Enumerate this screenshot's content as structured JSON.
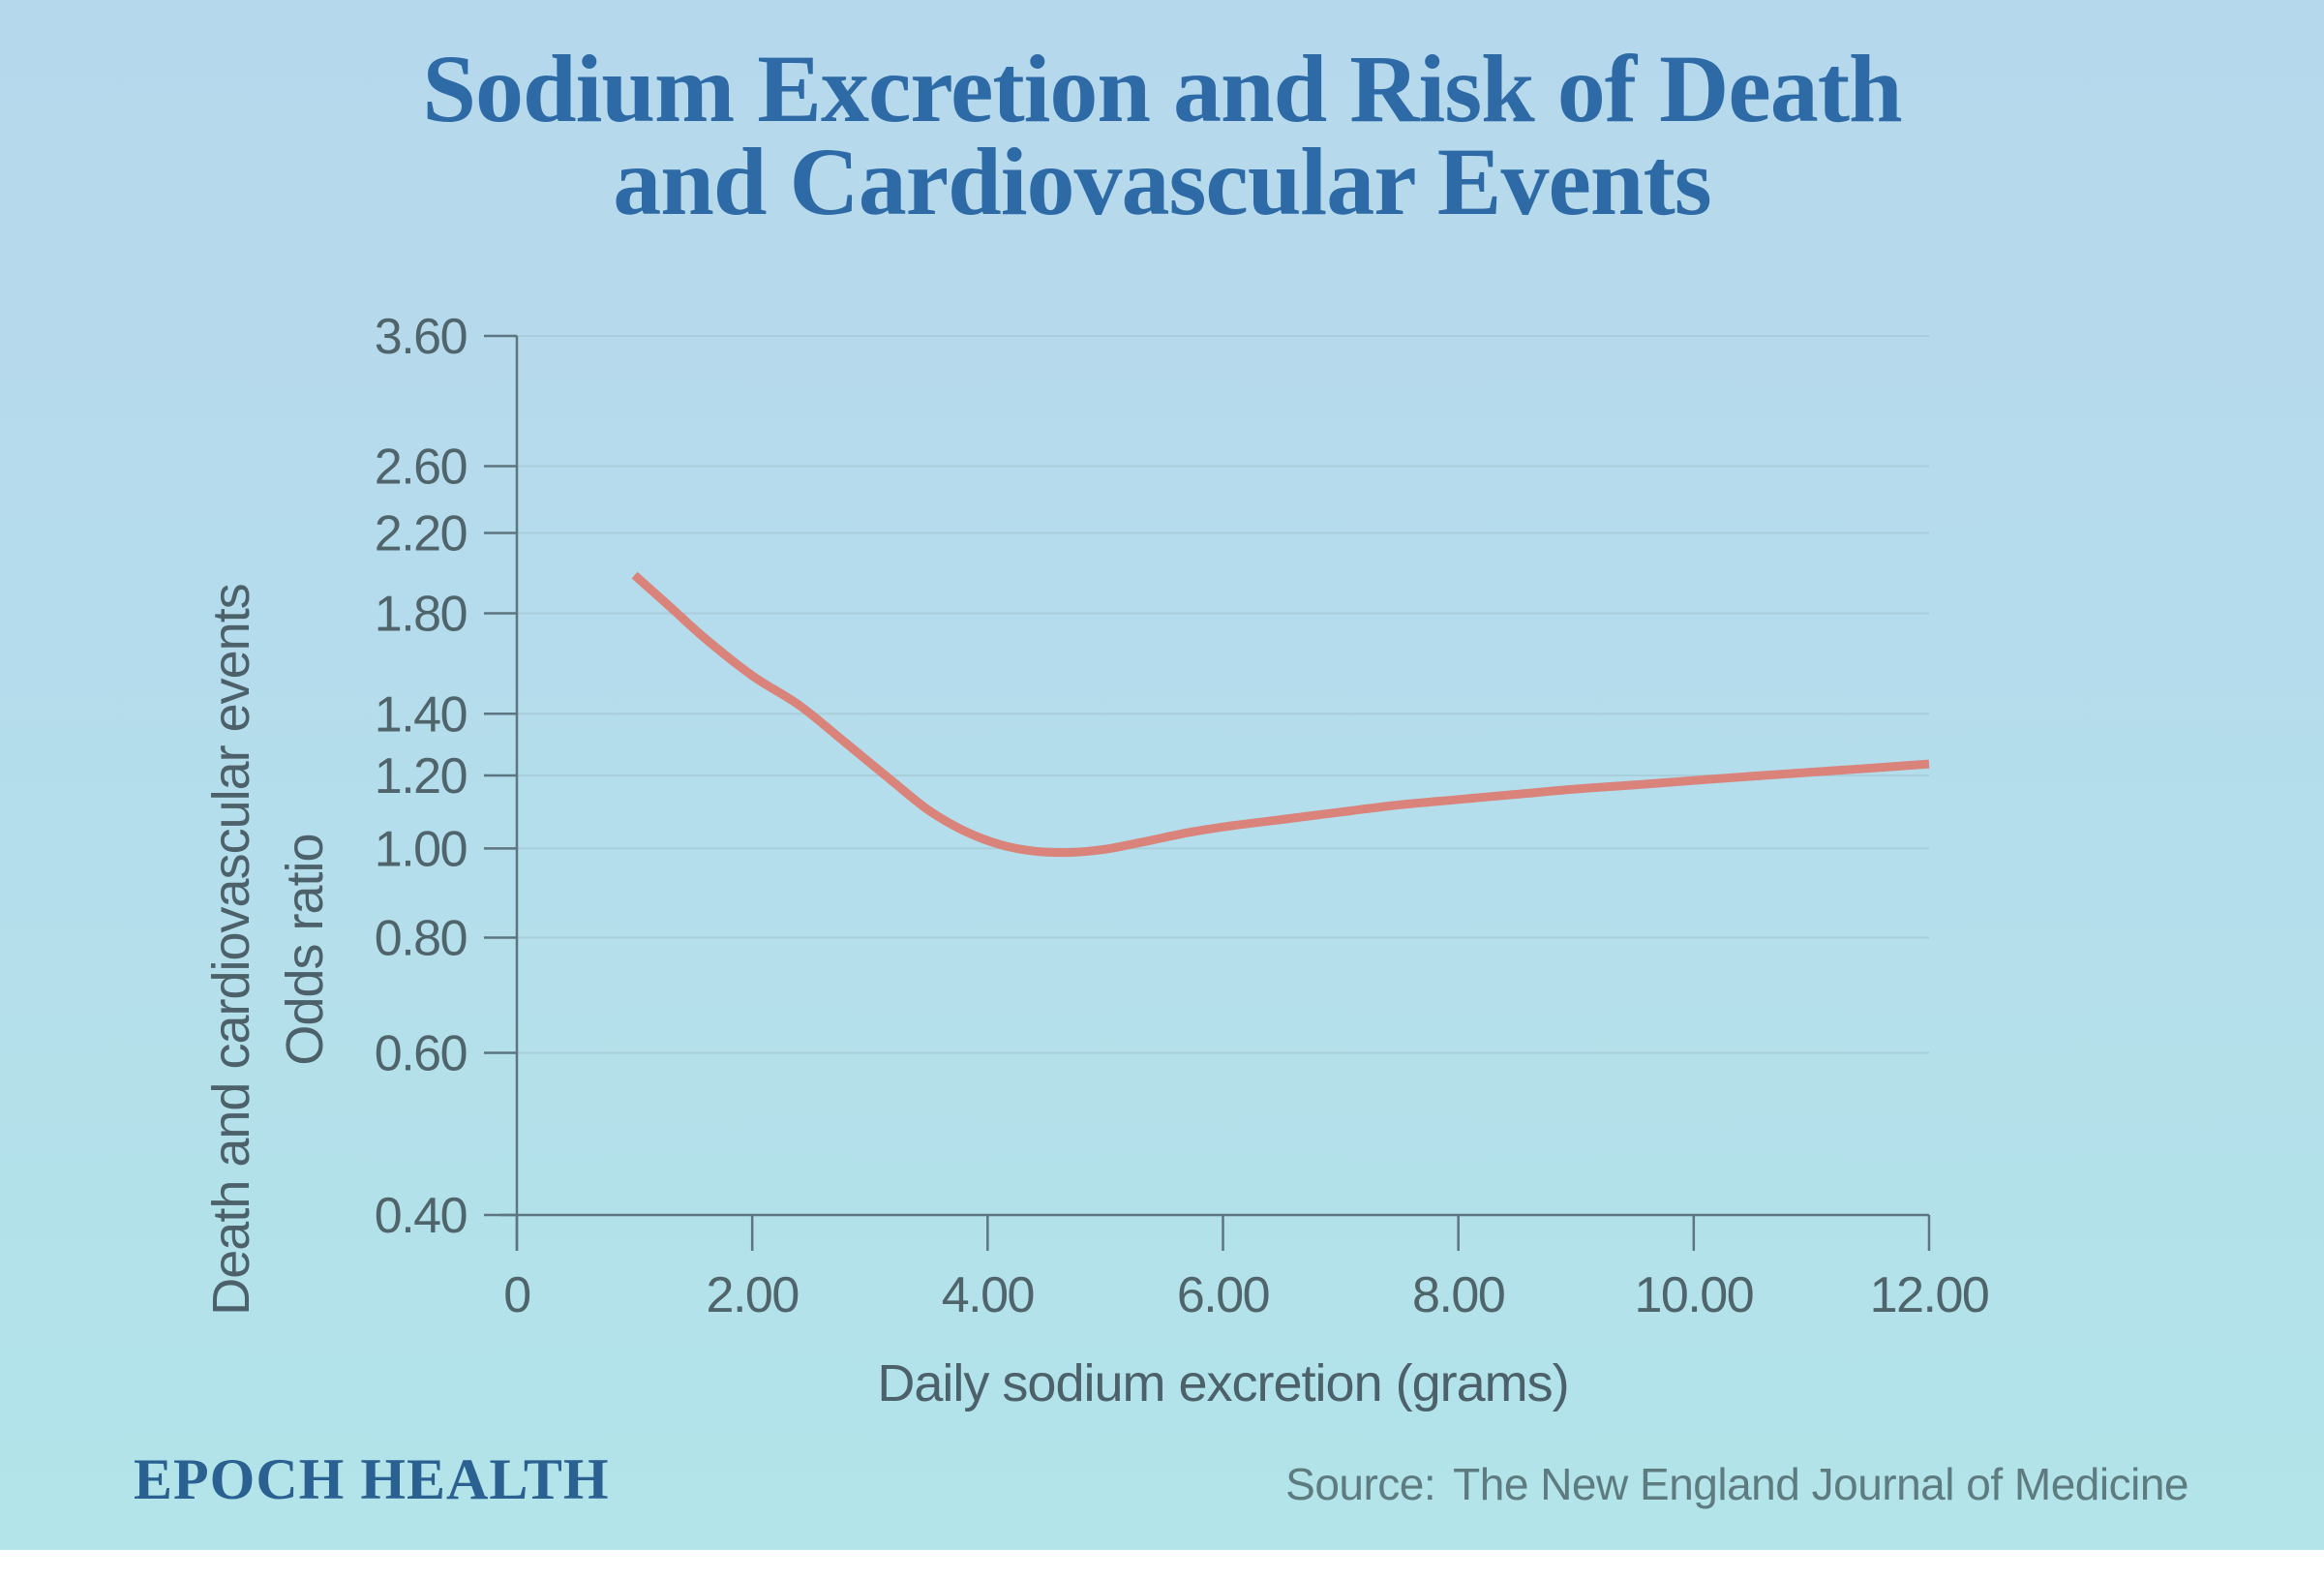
{
  "page": {
    "background_top": "#b6d8ec",
    "background_bottom": "#b2e4e9"
  },
  "header": {
    "title_line1": "Sodium Excretion and Risk of Death",
    "title_line2": "and Cardiovascular Events",
    "title_color": "#2e6ba6"
  },
  "footer": {
    "brand": "EPOCH HEALTH",
    "source_prefix": "Source:",
    "source_text": "The New England Journal of Medicine"
  },
  "chart_data": {
    "type": "line",
    "title": "Sodium Excretion and Risk of Death and Cardiovascular Events",
    "xlabel": "Daily sodium excretion (grams)",
    "ylabel_line1": "Death and cardiovascular events",
    "ylabel_line2": "Odds ratio",
    "x_scale": "linear",
    "y_scale": "log",
    "xlim": [
      0,
      12
    ],
    "ylim": [
      0.4,
      3.6
    ],
    "grid": "horizontal",
    "legend": "none",
    "x_ticks": [
      {
        "value": 0,
        "label": "0"
      },
      {
        "value": 2,
        "label": "2.00"
      },
      {
        "value": 4,
        "label": "4.00"
      },
      {
        "value": 6,
        "label": "6.00"
      },
      {
        "value": 8,
        "label": "8.00"
      },
      {
        "value": 10,
        "label": "10.00"
      },
      {
        "value": 12,
        "label": "12.00"
      }
    ],
    "y_ticks": [
      {
        "value": 3.6,
        "label": "3.60"
      },
      {
        "value": 2.6,
        "label": "2.60"
      },
      {
        "value": 2.2,
        "label": "2.20"
      },
      {
        "value": 1.8,
        "label": "1.80"
      },
      {
        "value": 1.4,
        "label": "1.40"
      },
      {
        "value": 1.2,
        "label": "1.20"
      },
      {
        "value": 1.0,
        "label": "1.00"
      },
      {
        "value": 0.8,
        "label": "0.80"
      },
      {
        "value": 0.6,
        "label": "0.60"
      },
      {
        "value": 0.4,
        "label": "0.40"
      }
    ],
    "series": [
      {
        "name": "Death and cardiovascular events (odds ratio)",
        "color": "#d9837b",
        "points": [
          [
            1.0,
            1.98
          ],
          [
            1.3,
            1.83
          ],
          [
            1.6,
            1.69
          ],
          [
            2.0,
            1.54
          ],
          [
            2.4,
            1.43
          ],
          [
            2.8,
            1.3
          ],
          [
            3.2,
            1.18
          ],
          [
            3.5,
            1.1
          ],
          [
            3.8,
            1.045
          ],
          [
            4.1,
            1.01
          ],
          [
            4.4,
            0.993
          ],
          [
            4.7,
            0.99
          ],
          [
            5.0,
            0.998
          ],
          [
            5.3,
            1.015
          ],
          [
            5.7,
            1.04
          ],
          [
            6.0,
            1.055
          ],
          [
            6.5,
            1.075
          ],
          [
            7.0,
            1.095
          ],
          [
            7.5,
            1.115
          ],
          [
            8.0,
            1.13
          ],
          [
            8.5,
            1.145
          ],
          [
            9.0,
            1.16
          ],
          [
            9.5,
            1.172
          ],
          [
            10.0,
            1.185
          ],
          [
            10.5,
            1.198
          ],
          [
            11.0,
            1.21
          ],
          [
            11.5,
            1.222
          ],
          [
            12.0,
            1.235
          ]
        ]
      }
    ]
  }
}
